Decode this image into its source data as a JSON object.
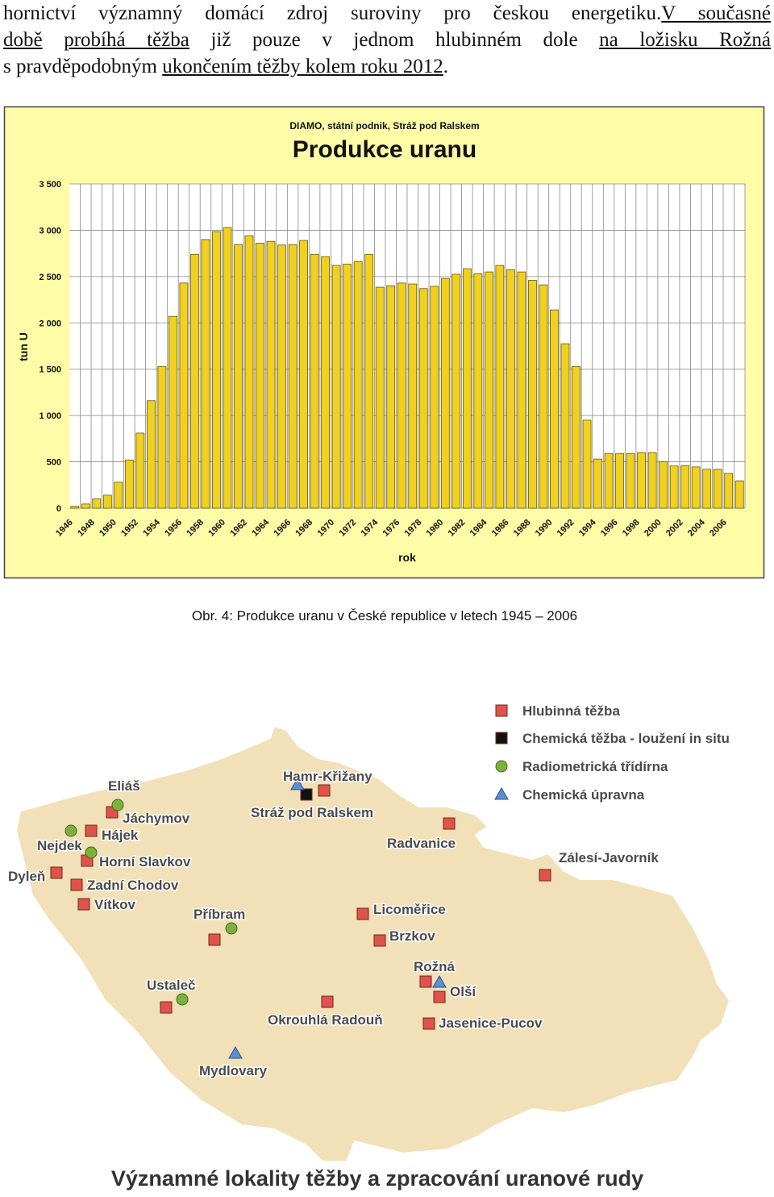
{
  "text": {
    "lines": [
      [
        {
          "text": "hornictví významný domácí zdroj suroviny pro českou energetiku."
        },
        {
          "text": "V současné",
          "underline": true
        }
      ],
      [
        {
          "text": "době",
          "underline": true
        },
        {
          "text": " "
        },
        {
          "text": "probíhá těžba",
          "underline": true
        },
        {
          "text": " již pouze v jednom hlubinném dole "
        },
        {
          "text": "na ložisku Rožná",
          "underline": true
        }
      ],
      [
        {
          "text": "s pravděpodobným "
        },
        {
          "text": "ukončením těžby kolem roku 2012",
          "underline": true
        },
        {
          "text": "."
        }
      ]
    ]
  },
  "chart_data": {
    "type": "bar",
    "subtitle": "DIAMO, státní podnik, Stráž pod Ralskem",
    "title": "Produkce uranu",
    "y_label": "tun U",
    "x_label": "rok",
    "categories": [
      "1946",
      null,
      "1948",
      null,
      "1950",
      null,
      "1952",
      null,
      "1954",
      null,
      "1956",
      null,
      "1958",
      null,
      "1960",
      null,
      "1962",
      null,
      "1964",
      null,
      "1966",
      null,
      "1968",
      null,
      "1970",
      null,
      "1972",
      null,
      "1974",
      null,
      "1976",
      null,
      "1978",
      null,
      "1980",
      null,
      "1982",
      null,
      "1984",
      null,
      "1986",
      null,
      "1988",
      null,
      "1990",
      null,
      "1992",
      null,
      "1994",
      null,
      "1996",
      null,
      "1998",
      null,
      "2000",
      null,
      "2002",
      null,
      "2004",
      null,
      "2006",
      null
    ],
    "values": [
      20,
      45,
      100,
      140,
      280,
      520,
      810,
      1160,
      1530,
      2070,
      2430,
      2740,
      2900,
      2985,
      3030,
      2845,
      2940,
      2860,
      2880,
      2840,
      2845,
      2890,
      2740,
      2715,
      2620,
      2635,
      2660,
      2740,
      2385,
      2400,
      2430,
      2420,
      2370,
      2395,
      2480,
      2525,
      2585,
      2530,
      2550,
      2620,
      2575,
      2550,
      2460,
      2410,
      2140,
      1775,
      1530,
      950,
      530,
      590,
      590,
      590,
      600,
      600,
      500,
      455,
      460,
      445,
      420,
      420,
      375,
      295
    ],
    "color": "#f0d020",
    "ylim": [
      0,
      3500
    ],
    "yticks": [
      0,
      500,
      {
        "value": 1000,
        "label": "1 000"
      },
      {
        "value": 1500,
        "label": "1 500"
      },
      {
        "value": 2000,
        "label": "2 000"
      },
      {
        "value": 2500,
        "label": "2 500"
      },
      {
        "value": 3000,
        "label": "3 000"
      },
      {
        "value": 3500,
        "label": "3 500"
      }
    ],
    "grid": true
  },
  "caption": "Obr. 4: Produkce uranu v České republice v letech 1945 – 2006",
  "map": {
    "title": "Významné lokality těžby a zpracování uranové rudy",
    "legend": [
      "Hlubinná těžba",
      "Chemická těžba - loužení in situ",
      "Radiometrická třídírna",
      "Chemická úpravna"
    ],
    "sites": [
      "Eliáš",
      "Jáchymov",
      "Hájek",
      "Nejdek",
      "Horní Slavkov",
      "Dyleň",
      "Zadní Chodov",
      "Vítkov",
      "Hamr-Křižany",
      "Stráž pod Ralskem",
      "Radvanice",
      "Zálesí-Javorník",
      "Příbram",
      "Licoměřice",
      "Brzkov",
      "Rožná",
      "Olší",
      "Jasenice-Pucov",
      "Ustaleč",
      "Okrouhlá Radouň",
      "Mydlovary"
    ]
  }
}
